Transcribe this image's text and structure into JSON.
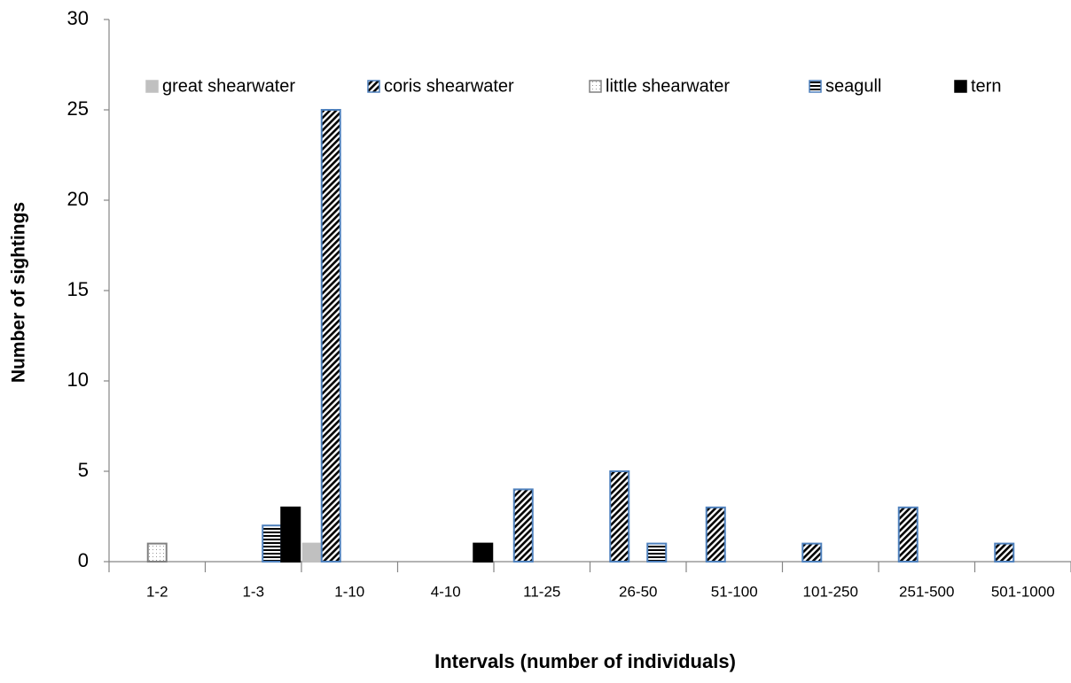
{
  "chart_data": {
    "type": "bar",
    "xlabel": "Intervals (number of individuals)",
    "ylabel": "Number of sightings",
    "categories": [
      "1-2",
      "1-3",
      "1-10",
      "4-10",
      "11-25",
      "26-50",
      "51-100",
      "101-250",
      "251-500",
      "501-1000"
    ],
    "series": [
      {
        "name": "great shearwater",
        "color": "#c0c0c0",
        "values": [
          0,
          0,
          1,
          0,
          0,
          0,
          0,
          0,
          0,
          0
        ]
      },
      {
        "name": "coris shearwater",
        "color": "#4f81bd",
        "values": [
          0,
          0,
          25,
          0,
          4,
          5,
          3,
          1,
          3,
          1
        ]
      },
      {
        "name": "little shearwater",
        "color": "#808080",
        "values": [
          1,
          0,
          0,
          0,
          0,
          0,
          0,
          0,
          0,
          0
        ]
      },
      {
        "name": "seagull",
        "color": "#4f81bd",
        "values": [
          0,
          2,
          0,
          0,
          0,
          1,
          0,
          0,
          0,
          0
        ]
      },
      {
        "name": "tern",
        "color": "#000000",
        "values": [
          0,
          3,
          0,
          1,
          0,
          0,
          0,
          0,
          0,
          0
        ]
      }
    ],
    "ylim": [
      0,
      30
    ],
    "yticks": [
      0,
      5,
      10,
      15,
      20,
      25,
      30
    ],
    "grid": false,
    "legend": "top"
  }
}
